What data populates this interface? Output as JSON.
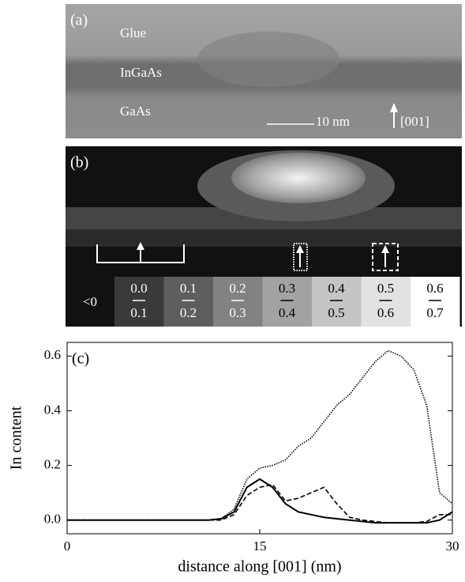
{
  "panel_a": {
    "label": "(a)",
    "layers": [
      "Glue",
      "InGaAs",
      "GaAs"
    ],
    "scale_bar": "10 nm",
    "direction": "[001]"
  },
  "panel_b": {
    "label": "(b)",
    "legend_negative": "<0",
    "legend": [
      {
        "lower": "0.0",
        "upper": "0.1"
      },
      {
        "lower": "0.1",
        "upper": "0.2"
      },
      {
        "lower": "0.2",
        "upper": "0.3"
      },
      {
        "lower": "0.3",
        "upper": "0.4"
      },
      {
        "lower": "0.4",
        "upper": "0.5"
      },
      {
        "lower": "0.5",
        "upper": "0.6"
      },
      {
        "lower": "0.6",
        "upper": "0.7"
      }
    ]
  },
  "chart_data": {
    "type": "line",
    "panel_label": "(c)",
    "x_label": "distance along [001] (nm)",
    "y_label": "In content",
    "x": [
      0,
      1,
      2,
      3,
      4,
      5,
      6,
      7,
      8,
      9,
      10,
      11,
      12,
      13,
      14,
      15,
      16,
      17,
      18,
      19,
      20,
      21,
      22,
      23,
      24,
      25,
      26,
      27,
      28,
      29,
      30
    ],
    "series": [
      {
        "color": "#000000",
        "dash": "solid",
        "values": [
          0,
          0,
          0,
          0,
          0,
          0,
          0,
          0,
          0,
          0,
          0,
          0,
          0.005,
          0.03,
          0.12,
          0.15,
          0.12,
          0.06,
          0.03,
          0.02,
          0.01,
          0.005,
          0,
          -0.005,
          -0.01,
          -0.01,
          -0.01,
          -0.01,
          -0.01,
          0,
          0.03
        ]
      },
      {
        "color": "#000000",
        "dash": "dashed",
        "values": [
          0,
          0,
          0,
          0,
          0,
          0,
          0,
          0,
          0,
          0,
          0,
          0,
          0,
          0.02,
          0.09,
          0.12,
          0.13,
          0.07,
          0.08,
          0.1,
          0.12,
          0.06,
          0.01,
          0,
          -0.005,
          -0.01,
          -0.01,
          -0.01,
          -0.005,
          0.02,
          0.02
        ]
      },
      {
        "color": "#000000",
        "dash": "dotted",
        "values": [
          0,
          0,
          0,
          0,
          0,
          0,
          0,
          0,
          0,
          0,
          0,
          0,
          0.005,
          0.04,
          0.15,
          0.19,
          0.2,
          0.22,
          0.27,
          0.3,
          0.36,
          0.42,
          0.46,
          0.52,
          0.58,
          0.62,
          0.6,
          0.55,
          0.42,
          0.1,
          0.06
        ]
      }
    ],
    "xlim": [
      0,
      30
    ],
    "xticks": [
      0,
      15,
      30
    ],
    "ylim": [
      -0.05,
      0.65
    ],
    "yticks": [
      {
        "value": 0,
        "label": "0.0"
      },
      0.2,
      0.4,
      0.6
    ]
  }
}
